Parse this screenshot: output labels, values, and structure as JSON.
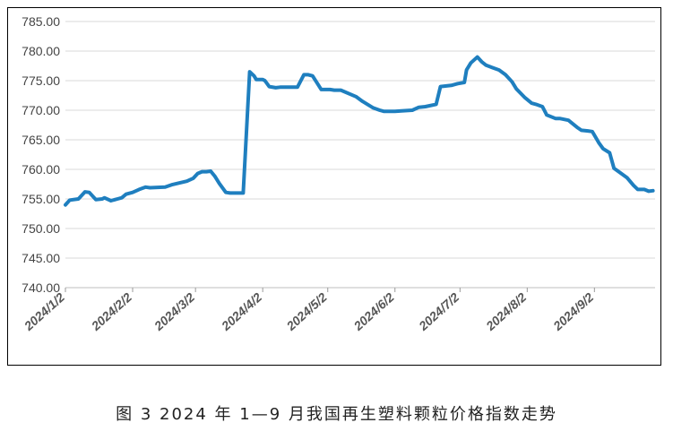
{
  "caption": "图 3  2024 年 1—9 月我国再生塑料颗粒价格指数走势",
  "chart_data": {
    "type": "line",
    "title": "",
    "xlabel": "",
    "ylabel": "",
    "ylim": [
      740,
      785
    ],
    "yticks": [
      "740.00",
      "745.00",
      "750.00",
      "755.00",
      "760.00",
      "765.00",
      "770.00",
      "775.00",
      "780.00",
      "785.00"
    ],
    "x_tick_labels": [
      "2024/1/2",
      "2024/2/2",
      "2024/3/2",
      "2024/4/2",
      "2024/5/2",
      "2024/6/2",
      "2024/7/2",
      "2024/8/2",
      "2024/9/2"
    ],
    "grid": "horizontal",
    "line_color": "#1f7fbf",
    "series": [
      {
        "x": [
          "2024-01-02",
          "2024-01-04",
          "2024-01-08",
          "2024-01-11",
          "2024-01-13",
          "2024-01-16",
          "2024-01-19",
          "2024-01-20",
          "2024-01-23",
          "2024-01-26",
          "2024-01-28",
          "2024-01-30",
          "2024-02-02",
          "2024-02-05",
          "2024-02-08",
          "2024-02-10",
          "2024-02-17",
          "2024-02-20",
          "2024-02-27",
          "2024-03-01",
          "2024-03-03",
          "2024-03-05",
          "2024-03-07",
          "2024-03-09",
          "2024-03-11",
          "2024-03-13",
          "2024-03-16",
          "2024-03-18",
          "2024-03-21",
          "2024-03-24",
          "2024-03-27",
          "2024-03-29",
          "2024-03-30",
          "2024-04-02",
          "2024-04-03",
          "2024-04-05",
          "2024-04-08",
          "2024-04-10",
          "2024-04-13",
          "2024-04-18",
          "2024-04-21",
          "2024-04-23",
          "2024-04-25",
          "2024-04-29",
          "2024-05-03",
          "2024-05-05",
          "2024-05-08",
          "2024-05-15",
          "2024-05-18",
          "2024-05-23",
          "2024-05-26",
          "2024-05-28",
          "2024-05-31",
          "2024-06-02",
          "2024-06-05",
          "2024-06-10",
          "2024-06-13",
          "2024-06-16",
          "2024-06-21",
          "2024-06-23",
          "2024-06-28",
          "2024-07-01",
          "2024-07-04",
          "2024-07-05",
          "2024-07-07",
          "2024-07-10",
          "2024-07-12",
          "2024-07-14",
          "2024-07-17",
          "2024-07-20",
          "2024-07-23",
          "2024-07-26",
          "2024-07-28",
          "2024-08-01",
          "2024-08-04",
          "2024-08-06",
          "2024-08-09",
          "2024-08-11",
          "2024-08-15",
          "2024-08-17",
          "2024-08-21",
          "2024-08-25",
          "2024-08-27",
          "2024-08-30",
          "2024-09-01",
          "2024-09-04",
          "2024-09-06",
          "2024-09-09",
          "2024-09-11",
          "2024-09-14",
          "2024-09-17",
          "2024-09-20",
          "2024-09-22",
          "2024-09-25",
          "2024-09-27",
          "2024-09-29"
        ],
        "values": [
          754.0,
          754.8,
          755.0,
          756.2,
          756.1,
          754.9,
          755.0,
          755.2,
          754.7,
          755.0,
          755.2,
          755.8,
          756.1,
          756.6,
          757.0,
          756.9,
          757.0,
          757.4,
          758.0,
          758.5,
          759.3,
          759.6,
          759.6,
          759.7,
          758.8,
          757.6,
          756.1,
          756.0,
          756.0,
          756.0,
          776.5,
          775.8,
          775.2,
          775.2,
          775.0,
          774.0,
          773.8,
          773.9,
          773.9,
          773.9,
          776.0,
          776.0,
          775.8,
          773.5,
          773.5,
          773.4,
          773.4,
          772.3,
          771.5,
          770.4,
          770.0,
          769.8,
          769.8,
          769.8,
          769.9,
          770.0,
          770.5,
          770.6,
          771.0,
          774.0,
          774.2,
          774.5,
          774.7,
          776.8,
          778.0,
          779.0,
          778.2,
          777.6,
          777.2,
          776.8,
          776.0,
          774.8,
          773.6,
          772.1,
          771.2,
          771.0,
          770.6,
          769.2,
          768.6,
          768.6,
          768.3,
          767.1,
          766.6,
          766.5,
          766.4,
          764.5,
          763.5,
          762.8,
          760.2,
          759.4,
          758.6,
          757.3,
          756.6,
          756.6,
          756.3,
          756.4
        ]
      }
    ]
  }
}
